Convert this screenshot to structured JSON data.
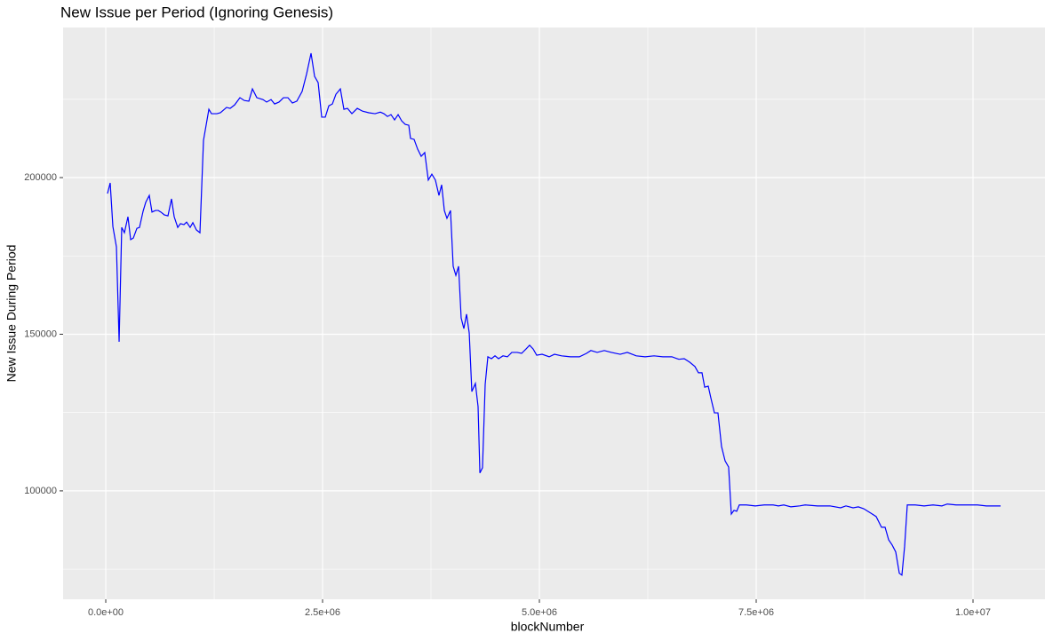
{
  "chart_data": {
    "type": "line",
    "title": "New Issue per Period (Ignoring Genesis)",
    "x_label": "blockNumber",
    "y_label": "New Issue During Period",
    "xlim": [
      -492000,
      10830000
    ],
    "ylim": [
      65400,
      247900
    ],
    "xticks": [
      {
        "value": 0,
        "label": "0.0e+00"
      },
      {
        "value": 2500000,
        "label": "2.5e+06"
      },
      {
        "value": 5000000,
        "label": "5.0e+06"
      },
      {
        "value": 7500000,
        "label": "7.5e+06"
      },
      {
        "value": 10000000,
        "label": "1.0e+07"
      }
    ],
    "yticks": [
      100000,
      150000,
      200000
    ],
    "grid": true,
    "x": [
      20000,
      51000,
      82000,
      123000,
      154000,
      184000,
      215000,
      256000,
      287000,
      318000,
      359000,
      389000,
      430000,
      461000,
      502000,
      533000,
      574000,
      605000,
      635000,
      676000,
      717000,
      758000,
      789000,
      830000,
      861000,
      902000,
      932000,
      973000,
      1004000,
      1045000,
      1086000,
      1127000,
      1189000,
      1219000,
      1281000,
      1322000,
      1393000,
      1434000,
      1486000,
      1547000,
      1598000,
      1650000,
      1691000,
      1742000,
      1813000,
      1855000,
      1906000,
      1947000,
      1998000,
      2049000,
      2100000,
      2152000,
      2203000,
      2264000,
      2316000,
      2367000,
      2408000,
      2449000,
      2490000,
      2531000,
      2572000,
      2613000,
      2654000,
      2705000,
      2746000,
      2787000,
      2838000,
      2900000,
      2961000,
      3033000,
      3105000,
      3166000,
      3207000,
      3248000,
      3289000,
      3330000,
      3371000,
      3412000,
      3453000,
      3494000,
      3514000,
      3555000,
      3596000,
      3637000,
      3678000,
      3719000,
      3760000,
      3801000,
      3842000,
      3873000,
      3904000,
      3934000,
      3975000,
      4006000,
      4037000,
      4068000,
      4098000,
      4129000,
      4160000,
      4191000,
      4221000,
      4262000,
      4293000,
      4314000,
      4344000,
      4375000,
      4406000,
      4447000,
      4488000,
      4529000,
      4580000,
      4631000,
      4682000,
      4744000,
      4795000,
      4846000,
      4887000,
      4928000,
      4969000,
      5031000,
      5113000,
      5174000,
      5256000,
      5358000,
      5461000,
      5543000,
      5594000,
      5666000,
      5748000,
      5830000,
      5932000,
      6014000,
      6117000,
      6219000,
      6322000,
      6424000,
      6527000,
      6609000,
      6670000,
      6732000,
      6793000,
      6834000,
      6875000,
      6906000,
      6947000,
      6977000,
      7018000,
      7059000,
      7100000,
      7141000,
      7182000,
      7213000,
      7244000,
      7275000,
      7305000,
      7387000,
      7490000,
      7592000,
      7695000,
      7756000,
      7818000,
      7900000,
      8002000,
      8064000,
      8207000,
      8350000,
      8473000,
      8535000,
      8617000,
      8678000,
      8740000,
      8822000,
      8883000,
      8945000,
      8986000,
      9027000,
      9068000,
      9109000,
      9150000,
      9180000,
      9211000,
      9242000,
      9334000,
      9436000,
      9539000,
      9641000,
      9703000,
      9805000,
      9949000,
      10051000,
      10154000,
      10318000
    ],
    "series": [
      {
        "name": "New Issue During Period",
        "color": "#0000ff",
        "values": [
          194900,
          198300,
          184400,
          177900,
          147600,
          184100,
          182400,
          187500,
          180200,
          180700,
          183800,
          184100,
          189200,
          192100,
          194300,
          189000,
          189500,
          189500,
          189000,
          188100,
          187800,
          193200,
          187500,
          184100,
          185300,
          185000,
          185800,
          184100,
          185600,
          183300,
          182400,
          211900,
          221800,
          220400,
          220400,
          220700,
          222400,
          222100,
          223200,
          225500,
          224600,
          224400,
          228300,
          225500,
          224900,
          224100,
          224900,
          223500,
          224100,
          225500,
          225500,
          223800,
          224400,
          227500,
          233100,
          239700,
          232300,
          230300,
          219300,
          219300,
          222900,
          223500,
          226600,
          228300,
          221800,
          222100,
          220400,
          222100,
          221200,
          220700,
          220400,
          220900,
          220400,
          219500,
          220100,
          218400,
          220100,
          218100,
          217000,
          216700,
          212500,
          212200,
          209100,
          206800,
          208000,
          199200,
          201100,
          199200,
          194300,
          197700,
          189500,
          187000,
          189500,
          171700,
          168800,
          171700,
          155200,
          151800,
          156400,
          150400,
          131700,
          134300,
          126900,
          105700,
          107400,
          134000,
          142800,
          142200,
          143100,
          142200,
          143100,
          142800,
          144200,
          144200,
          143900,
          145300,
          146500,
          145300,
          143300,
          143600,
          142800,
          143600,
          143100,
          142800,
          142800,
          143900,
          144800,
          144200,
          144800,
          144200,
          143600,
          144200,
          143100,
          142800,
          143100,
          142800,
          142800,
          142000,
          142200,
          141100,
          139700,
          137700,
          137700,
          133100,
          133400,
          129700,
          124900,
          124900,
          114200,
          109600,
          107600,
          92600,
          93800,
          93500,
          95500,
          95500,
          95200,
          95500,
          95500,
          95200,
          95500,
          94900,
          95200,
          95500,
          95200,
          95200,
          94600,
          95200,
          94600,
          94900,
          94300,
          92900,
          91800,
          88400,
          88400,
          84400,
          82700,
          80500,
          73700,
          73100,
          82200,
          95500,
          95500,
          95200,
          95500,
          95200,
          95800,
          95500,
          95500,
          95500,
          95200,
          95200
        ]
      }
    ]
  }
}
